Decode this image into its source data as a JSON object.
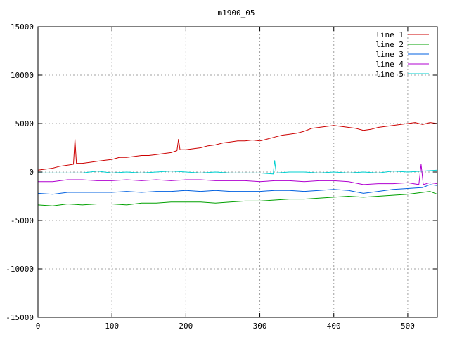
{
  "chart_data": {
    "type": "line",
    "title": "m1900_05",
    "xlabel": "",
    "ylabel": "",
    "xlim": [
      0,
      540
    ],
    "ylim": [
      -15000,
      15000
    ],
    "xticks": [
      0,
      100,
      200,
      300,
      400,
      500
    ],
    "yticks": [
      -15000,
      -10000,
      -5000,
      0,
      5000,
      10000,
      15000
    ],
    "grid": true,
    "legend_position": "top-right",
    "series": [
      {
        "name": "line 1",
        "color": "#cc0000",
        "x": [
          0,
          10,
          20,
          30,
          40,
          48,
          50,
          52,
          60,
          70,
          80,
          90,
          100,
          110,
          120,
          130,
          140,
          150,
          160,
          170,
          180,
          188,
          190,
          192,
          200,
          210,
          220,
          230,
          240,
          250,
          260,
          270,
          280,
          290,
          300,
          310,
          320,
          330,
          340,
          350,
          360,
          370,
          380,
          390,
          400,
          410,
          420,
          430,
          440,
          450,
          460,
          470,
          480,
          490,
          500,
          510,
          520,
          530,
          540
        ],
        "y": [
          200,
          300,
          400,
          600,
          700,
          800,
          3400,
          900,
          900,
          1000,
          1100,
          1200,
          1300,
          1500,
          1500,
          1600,
          1700,
          1700,
          1800,
          1900,
          2000,
          2200,
          3400,
          2300,
          2300,
          2400,
          2500,
          2700,
          2800,
          3000,
          3100,
          3200,
          3200,
          3300,
          3200,
          3400,
          3600,
          3800,
          3900,
          4000,
          4200,
          4500,
          4600,
          4700,
          4800,
          4700,
          4600,
          4500,
          4300,
          4400,
          4600,
          4700,
          4800,
          4900,
          5000,
          5100,
          4900,
          5100,
          5000
        ]
      },
      {
        "name": "line 2",
        "color": "#00a000",
        "x": [
          0,
          20,
          40,
          60,
          80,
          100,
          120,
          140,
          160,
          180,
          200,
          220,
          240,
          260,
          280,
          300,
          320,
          340,
          360,
          380,
          400,
          420,
          440,
          460,
          480,
          500,
          520,
          530,
          540
        ],
        "y": [
          -3400,
          -3500,
          -3300,
          -3400,
          -3300,
          -3300,
          -3400,
          -3200,
          -3200,
          -3100,
          -3100,
          -3100,
          -3200,
          -3100,
          -3000,
          -3000,
          -2900,
          -2800,
          -2800,
          -2700,
          -2600,
          -2500,
          -2600,
          -2500,
          -2400,
          -2300,
          -2100,
          -2000,
          -2300
        ]
      },
      {
        "name": "line 3",
        "color": "#0060e0",
        "x": [
          0,
          20,
          40,
          60,
          80,
          100,
          120,
          140,
          160,
          180,
          200,
          220,
          240,
          260,
          280,
          300,
          320,
          340,
          360,
          380,
          400,
          420,
          440,
          460,
          480,
          500,
          520,
          530,
          540
        ],
        "y": [
          -2200,
          -2300,
          -2100,
          -2100,
          -2100,
          -2100,
          -2000,
          -2100,
          -2000,
          -2000,
          -1900,
          -2000,
          -1900,
          -2000,
          -2000,
          -2000,
          -1900,
          -1900,
          -2000,
          -1900,
          -1800,
          -1900,
          -2200,
          -2000,
          -1800,
          -1700,
          -1600,
          -1300,
          -1400
        ]
      },
      {
        "name": "line 4",
        "color": "#b000d0",
        "x": [
          0,
          20,
          40,
          60,
          80,
          100,
          120,
          140,
          160,
          180,
          200,
          220,
          240,
          260,
          280,
          300,
          320,
          340,
          360,
          380,
          400,
          420,
          440,
          460,
          480,
          500,
          515,
          518,
          521,
          530,
          540
        ],
        "y": [
          -1000,
          -1000,
          -800,
          -800,
          -900,
          -900,
          -800,
          -900,
          -800,
          -900,
          -800,
          -800,
          -900,
          -900,
          -900,
          -1000,
          -900,
          -900,
          -1000,
          -900,
          -900,
          -1000,
          -1300,
          -1200,
          -1200,
          -1100,
          -1300,
          800,
          -1300,
          -1100,
          -1200
        ]
      },
      {
        "name": "line 5",
        "color": "#00d0d0",
        "x": [
          0,
          20,
          40,
          60,
          80,
          100,
          120,
          140,
          160,
          180,
          200,
          220,
          240,
          260,
          280,
          300,
          318,
          320,
          322,
          340,
          360,
          380,
          400,
          420,
          440,
          460,
          480,
          500,
          520,
          540
        ],
        "y": [
          -100,
          -100,
          -100,
          -100,
          100,
          -100,
          0,
          -100,
          0,
          100,
          0,
          -100,
          0,
          -100,
          -100,
          -100,
          -200,
          1200,
          -100,
          0,
          0,
          -100,
          0,
          -100,
          0,
          -100,
          100,
          0,
          100,
          200
        ]
      }
    ]
  }
}
